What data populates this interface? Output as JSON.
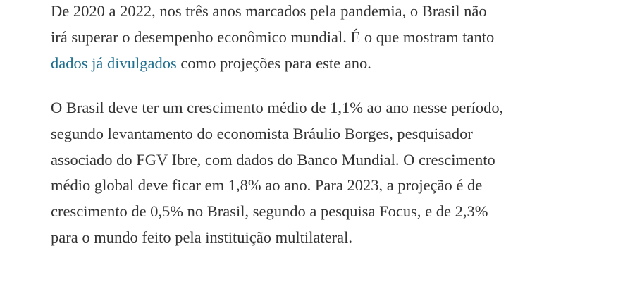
{
  "paragraphs": [
    {
      "lines": [
        "De 2020 a 2022, nos três anos marcados pela pandemia, o Brasil não",
        "irá superar o desempenho econômico mundial. É o que mostram tanto"
      ],
      "link": "dados já divulgados",
      "after_link": "como projeções para este ano."
    },
    {
      "lines": [
        "O Brasil deve ter um crescimento médio de 1,1% ao ano nesse período,",
        "segundo levantamento do economista Bráulio Borges, pesquisador",
        "associado do FGV Ibre, com dados do Banco Mundial. O crescimento",
        "médio global deve ficar em 1,8% ao ano. Para 2023, a projeção é de",
        "crescimento de 0,5% no Brasil, segundo a pesquisa Focus, e de 2,3%",
        "para o mundo feito pela instituição multilateral."
      ]
    }
  ]
}
